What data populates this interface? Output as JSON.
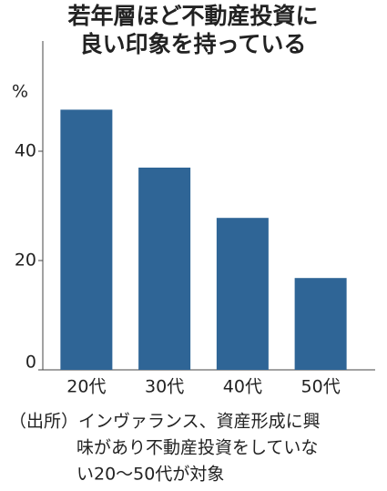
{
  "chart_data": {
    "type": "bar",
    "title_lines": [
      "若年層ほど不動産投資に",
      "良い印象を持っている"
    ],
    "y_unit": "%",
    "categories": [
      "20代",
      "30代",
      "40代",
      "50代"
    ],
    "values": [
      47.6,
      37,
      27.8,
      16.8
    ],
    "color": "#2f6596",
    "ylim": [
      0,
      60
    ],
    "yticks": [
      0,
      20,
      40
    ],
    "grid": false,
    "note_lines": [
      "（出所）インヴァランス、資産形成に興",
      "味があり不動産投資をしていな",
      "い20～50代が対象"
    ]
  }
}
